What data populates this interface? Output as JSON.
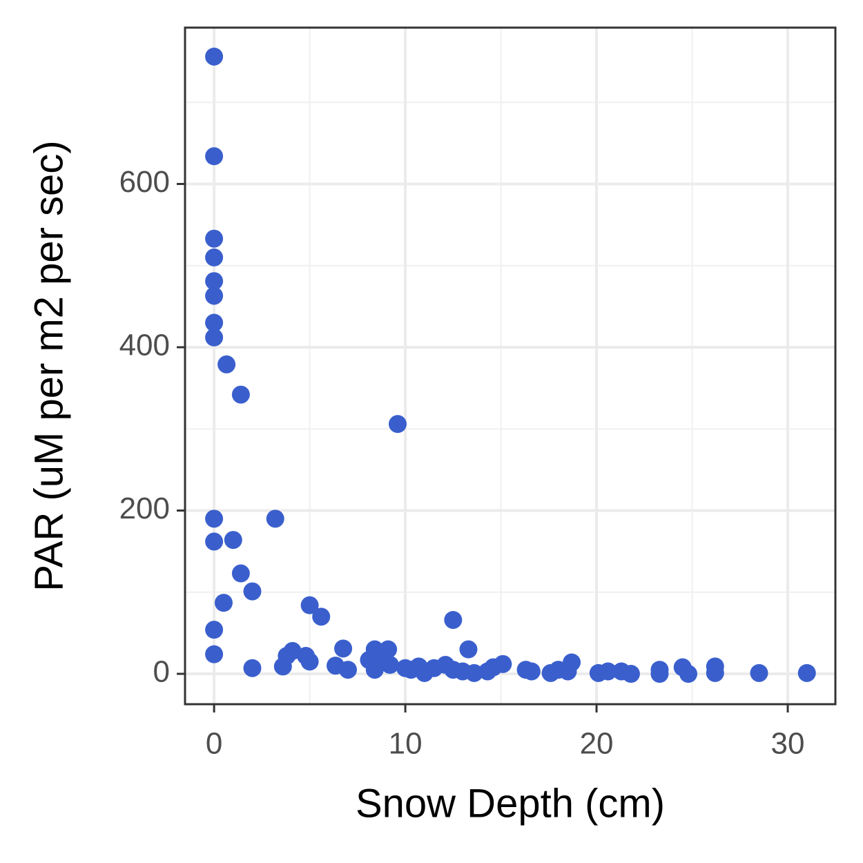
{
  "chart_data": {
    "type": "scatter",
    "x_label": "Snow Depth (cm)",
    "y_label": "PAR (uM per m2 per sec)",
    "color": "#3a5fcd",
    "xlim": [
      -1.52,
      32.49
    ],
    "ylim": [
      -37.2,
      791.5
    ],
    "xticks": [
      0,
      10,
      20,
      30
    ],
    "yticks": [
      0,
      200,
      400,
      600
    ],
    "xminor": [
      5,
      15,
      25
    ],
    "yminor": [
      100,
      300,
      500,
      700
    ],
    "grid": true,
    "x": [
      0,
      0,
      0,
      0,
      0,
      0,
      0,
      0,
      0.65,
      1.4,
      9.6,
      0,
      3.2,
      0,
      1.0,
      1.4,
      2.0,
      0.5,
      5.0,
      5.6,
      12.5,
      0,
      0,
      2.0,
      3.6,
      3.8,
      4.1,
      4.8,
      5.0,
      6.35,
      6.75,
      7.0,
      8.1,
      8.4,
      8.4,
      8.7,
      9.1,
      9.2,
      10,
      10.3,
      10.7,
      11.0,
      11.5,
      12.1,
      12.5,
      13.3,
      13.0,
      13.6,
      14.3,
      14.6,
      15.1,
      16.3,
      16.6,
      17.6,
      18,
      18.5,
      18.7,
      20.1,
      20.6,
      21.3,
      21.8,
      23.3,
      23.3,
      24.5,
      24.8,
      26.2,
      26.2,
      28.5,
      31
    ],
    "values": [
      756,
      634,
      533,
      510,
      481,
      463,
      430,
      412,
      379,
      342,
      306,
      190,
      190,
      162,
      164,
      123,
      101,
      87,
      84,
      70,
      66,
      54,
      24,
      7,
      9,
      22,
      28,
      22,
      15,
      10,
      31,
      5,
      17,
      30,
      5,
      14,
      30,
      11,
      7,
      5,
      9,
      1,
      7,
      11,
      5,
      30,
      3,
      1,
      3,
      8,
      12,
      5,
      3,
      1,
      5,
      3,
      14,
      1,
      3,
      3,
      0,
      5,
      0,
      8,
      0,
      9,
      1,
      1,
      1
    ]
  }
}
